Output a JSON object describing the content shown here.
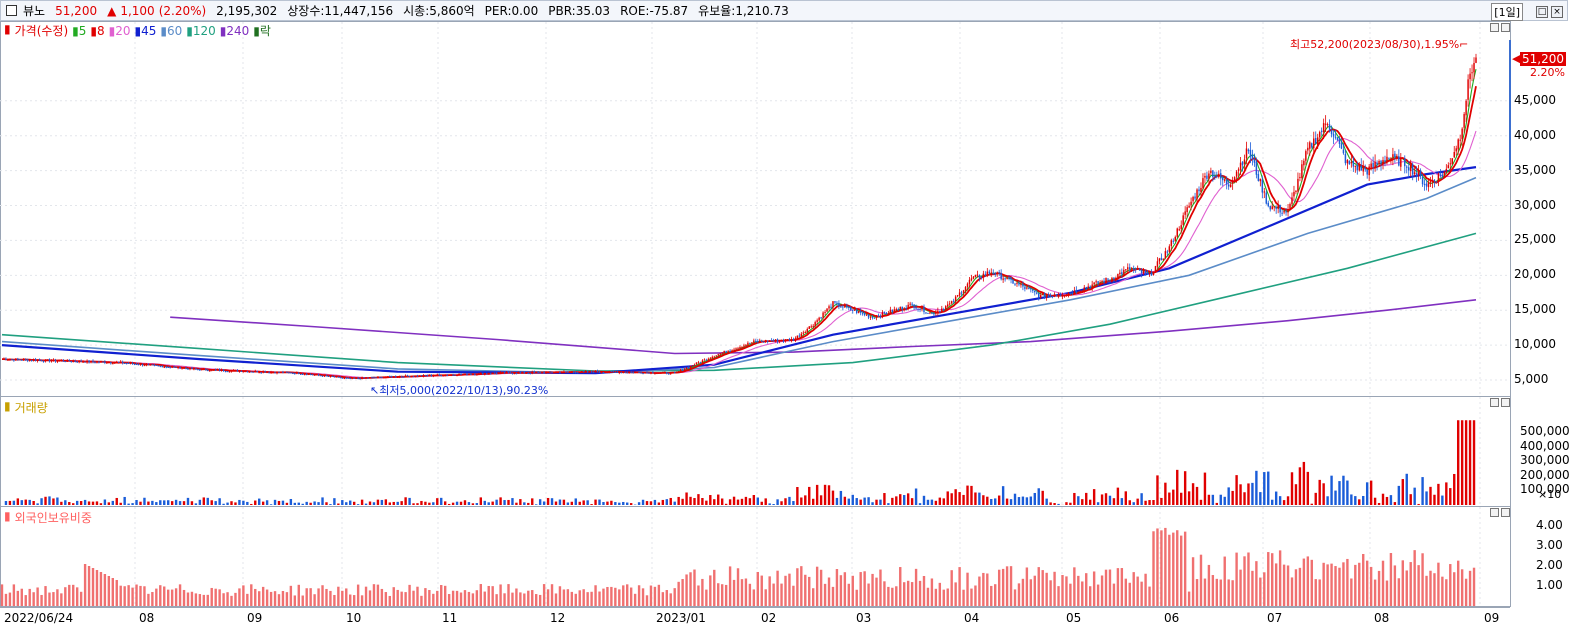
{
  "info": {
    "name": "뷰노",
    "price": "51,200",
    "change_arrow": "▲",
    "change": "1,100",
    "change_pct": "(2.20%)",
    "volume": "2,195,302",
    "listed": "상장수:11,447,156",
    "mktcap": "시총:5,860억",
    "per": "PER:0.00",
    "pbr": "PBR:35.03",
    "roe": "ROE:-75.87",
    "float": "유보율:1,210.73",
    "period": "[1일]"
  },
  "legend": {
    "price": "가격(수정)",
    "ma": [
      {
        "label": "5",
        "color": "#22aa22"
      },
      {
        "label": "8",
        "color": "#e00000"
      },
      {
        "label": "20",
        "color": "#e060d0"
      },
      {
        "label": "45",
        "color": "#1020d0"
      },
      {
        "label": "60",
        "color": "#5b8cc8"
      },
      {
        "label": "120",
        "color": "#20a080"
      },
      {
        "label": "240",
        "color": "#8030c0"
      },
      {
        "label": "락",
        "color": "#207020"
      }
    ],
    "volume": "거래량",
    "foreign": "외국인보유비중"
  },
  "annotations": {
    "high": "최고52,200(2023/08/30),1.95%",
    "low": "최저5,000(2022/10/13),90.23%",
    "last_price": "51,200",
    "last_pct": "2.20%"
  },
  "price_axis": [
    "45,000",
    "40,000",
    "35,000",
    "30,000",
    "25,000",
    "20,000",
    "15,000",
    "10,000",
    "5,000"
  ],
  "volume_axis": [
    "500,000",
    "400,000",
    "300,000",
    "200,000",
    "100,000"
  ],
  "volume_unit": "×10",
  "foreign_axis": [
    "4.00",
    "3.00",
    "2.00",
    "1.00"
  ],
  "x_axis": [
    "2022/06/24",
    "08",
    "09",
    "10",
    "11",
    "12",
    "2023/01",
    "02",
    "03",
    "04",
    "05",
    "06",
    "07",
    "08",
    "09"
  ],
  "chart_data": {
    "type": "candlestick",
    "x_start": "2022/06/24",
    "x_end": "2023/08/31",
    "price_range": [
      3000,
      56000
    ],
    "price_anchors": [
      [
        0,
        8000
      ],
      [
        60,
        7500
      ],
      [
        100,
        6500
      ],
      [
        150,
        6000
      ],
      [
        175,
        5200
      ],
      [
        200,
        5500
      ],
      [
        250,
        6000
      ],
      [
        300,
        6200
      ],
      [
        340,
        6000
      ],
      [
        360,
        8500
      ],
      [
        380,
        10500
      ],
      [
        400,
        10800
      ],
      [
        410,
        13000
      ],
      [
        420,
        16000
      ],
      [
        440,
        14000
      ],
      [
        460,
        15800
      ],
      [
        470,
        14500
      ],
      [
        480,
        16000
      ],
      [
        490,
        19500
      ],
      [
        500,
        20500
      ],
      [
        515,
        18500
      ],
      [
        525,
        17000
      ],
      [
        540,
        17500
      ],
      [
        560,
        19500
      ],
      [
        570,
        21000
      ],
      [
        580,
        20000
      ],
      [
        590,
        24000
      ],
      [
        600,
        30000
      ],
      [
        610,
        35000
      ],
      [
        620,
        33000
      ],
      [
        630,
        38000
      ],
      [
        640,
        30000
      ],
      [
        650,
        29000
      ],
      [
        660,
        38000
      ],
      [
        670,
        42000
      ],
      [
        680,
        36000
      ],
      [
        690,
        35000
      ],
      [
        700,
        37000
      ],
      [
        710,
        36000
      ],
      [
        720,
        33000
      ],
      [
        730,
        35000
      ],
      [
        737,
        40000
      ],
      [
        742,
        49000
      ],
      [
        745,
        51200
      ]
    ],
    "ma_series": [
      {
        "name": "240",
        "values": [
          [
            85,
            14000
          ],
          [
            160,
            12600
          ],
          [
            250,
            10800
          ],
          [
            340,
            8800
          ],
          [
            400,
            9000
          ],
          [
            460,
            9800
          ],
          [
            520,
            10500
          ],
          [
            590,
            12000
          ],
          [
            650,
            13500
          ],
          [
            700,
            15000
          ],
          [
            745,
            16500
          ]
        ]
      },
      {
        "name": "120",
        "values": [
          [
            0,
            11500
          ],
          [
            100,
            9500
          ],
          [
            200,
            7500
          ],
          [
            300,
            6300
          ],
          [
            360,
            6400
          ],
          [
            430,
            7500
          ],
          [
            500,
            10000
          ],
          [
            560,
            13000
          ],
          [
            620,
            17000
          ],
          [
            680,
            21000
          ],
          [
            745,
            26000
          ]
        ]
      },
      {
        "name": "60",
        "values": [
          [
            0,
            10500
          ],
          [
            100,
            8500
          ],
          [
            200,
            6600
          ],
          [
            300,
            6000
          ],
          [
            360,
            6800
          ],
          [
            420,
            10500
          ],
          [
            480,
            13500
          ],
          [
            540,
            16500
          ],
          [
            600,
            20000
          ],
          [
            660,
            26000
          ],
          [
            720,
            31000
          ],
          [
            745,
            34000
          ]
        ]
      },
      {
        "name": "45",
        "values": [
          [
            0,
            10000
          ],
          [
            100,
            8000
          ],
          [
            200,
            6200
          ],
          [
            300,
            6000
          ],
          [
            360,
            7200
          ],
          [
            420,
            11500
          ],
          [
            480,
            14500
          ],
          [
            540,
            17500
          ],
          [
            590,
            21000
          ],
          [
            640,
            27000
          ],
          [
            690,
            33000
          ],
          [
            720,
            34500
          ],
          [
            745,
            35500
          ]
        ]
      }
    ],
    "volume_range": [
      0,
      650000
    ],
    "foreign_range": [
      0,
      4.5
    ]
  }
}
